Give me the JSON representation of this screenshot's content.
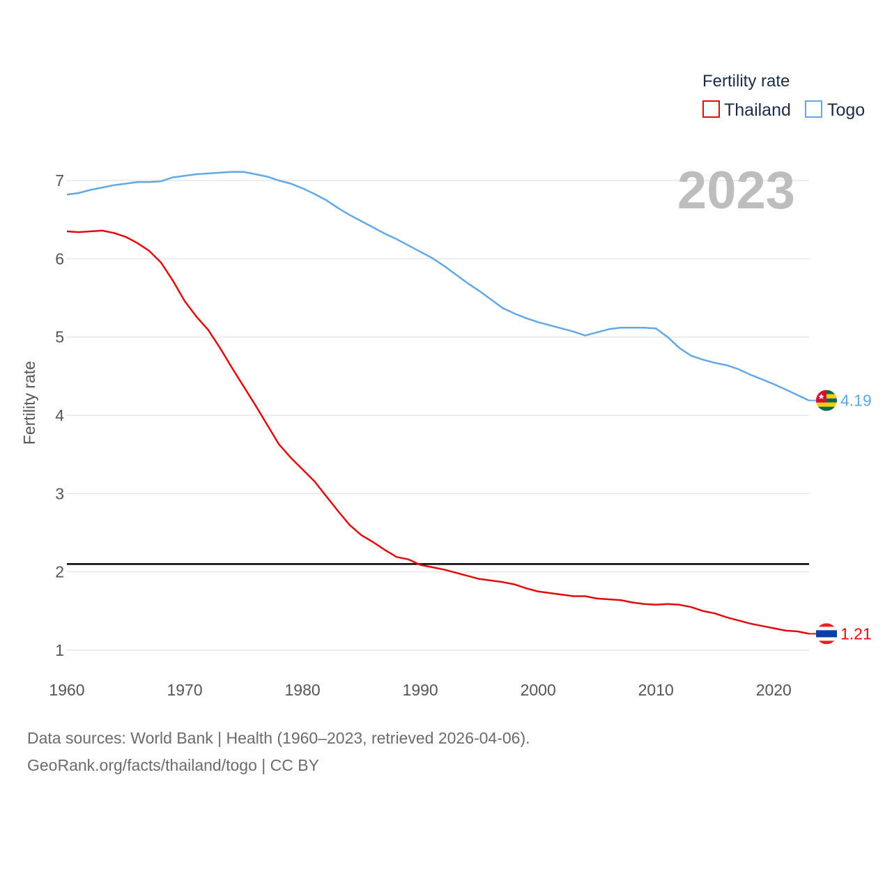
{
  "chart_data": {
    "type": "line",
    "title": "",
    "ylabel": "Fertility rate",
    "xlabel": "",
    "year_label": "2023",
    "xlim": [
      1960,
      2023
    ],
    "ylim": [
      0.9,
      7.4
    ],
    "x_ticks": [
      1960,
      1970,
      1980,
      1990,
      2000,
      2010,
      2020
    ],
    "y_ticks": [
      1,
      2,
      3,
      4,
      5,
      6,
      7
    ],
    "grid": true,
    "legend": {
      "title": "Fertility rate",
      "position": "top-right"
    },
    "reference_line": {
      "value": 2.1,
      "color": "#000000"
    },
    "x": [
      1960,
      1961,
      1962,
      1963,
      1964,
      1965,
      1966,
      1967,
      1968,
      1969,
      1970,
      1971,
      1972,
      1973,
      1974,
      1975,
      1976,
      1977,
      1978,
      1979,
      1980,
      1981,
      1982,
      1983,
      1984,
      1985,
      1986,
      1987,
      1988,
      1989,
      1990,
      1991,
      1992,
      1993,
      1994,
      1995,
      1996,
      1997,
      1998,
      1999,
      2000,
      2001,
      2002,
      2003,
      2004,
      2005,
      2006,
      2007,
      2008,
      2009,
      2010,
      2011,
      2012,
      2013,
      2014,
      2015,
      2016,
      2017,
      2018,
      2019,
      2020,
      2021,
      2022,
      2023
    ],
    "series": [
      {
        "name": "Thailand",
        "color": "#e00b0b",
        "end_label": "1.21",
        "values": [
          6.35,
          6.34,
          6.35,
          6.36,
          6.33,
          6.28,
          6.2,
          6.1,
          5.95,
          5.72,
          5.46,
          5.26,
          5.09,
          4.86,
          4.61,
          4.37,
          4.13,
          3.88,
          3.63,
          3.46,
          3.31,
          3.16,
          2.97,
          2.78,
          2.6,
          2.47,
          2.38,
          2.28,
          2.19,
          2.16,
          2.09,
          2.06,
          2.03,
          1.99,
          1.95,
          1.91,
          1.89,
          1.87,
          1.84,
          1.79,
          1.75,
          1.73,
          1.71,
          1.69,
          1.69,
          1.66,
          1.65,
          1.64,
          1.61,
          1.59,
          1.58,
          1.59,
          1.58,
          1.55,
          1.5,
          1.47,
          1.42,
          1.38,
          1.34,
          1.31,
          1.28,
          1.25,
          1.24,
          1.21
        ]
      },
      {
        "name": "Togo",
        "color": "#62a8e5",
        "end_label": "4.19",
        "values": [
          6.82,
          6.84,
          6.88,
          6.91,
          6.94,
          6.96,
          6.98,
          6.98,
          6.99,
          7.04,
          7.06,
          7.08,
          7.09,
          7.1,
          7.11,
          7.11,
          7.08,
          7.05,
          7.0,
          6.96,
          6.9,
          6.83,
          6.75,
          6.65,
          6.56,
          6.48,
          6.4,
          6.32,
          6.25,
          6.17,
          6.09,
          6.01,
          5.91,
          5.8,
          5.69,
          5.59,
          5.48,
          5.37,
          5.3,
          5.24,
          5.19,
          5.15,
          5.11,
          5.07,
          5.02,
          5.06,
          5.1,
          5.12,
          5.12,
          5.12,
          5.11,
          5.0,
          4.86,
          4.76,
          4.71,
          4.67,
          4.64,
          4.59,
          4.52,
          4.46,
          4.4,
          4.33,
          4.26,
          4.19
        ]
      }
    ]
  },
  "footer": {
    "line1": "Data sources: World Bank | Health (1960–2023, retrieved 2026-04-06).",
    "line2": "GeoRank.org/facts/thailand/togo | CC BY"
  },
  "icons": {
    "thailand": "thailand-flag-icon",
    "togo": "togo-flag-icon"
  }
}
